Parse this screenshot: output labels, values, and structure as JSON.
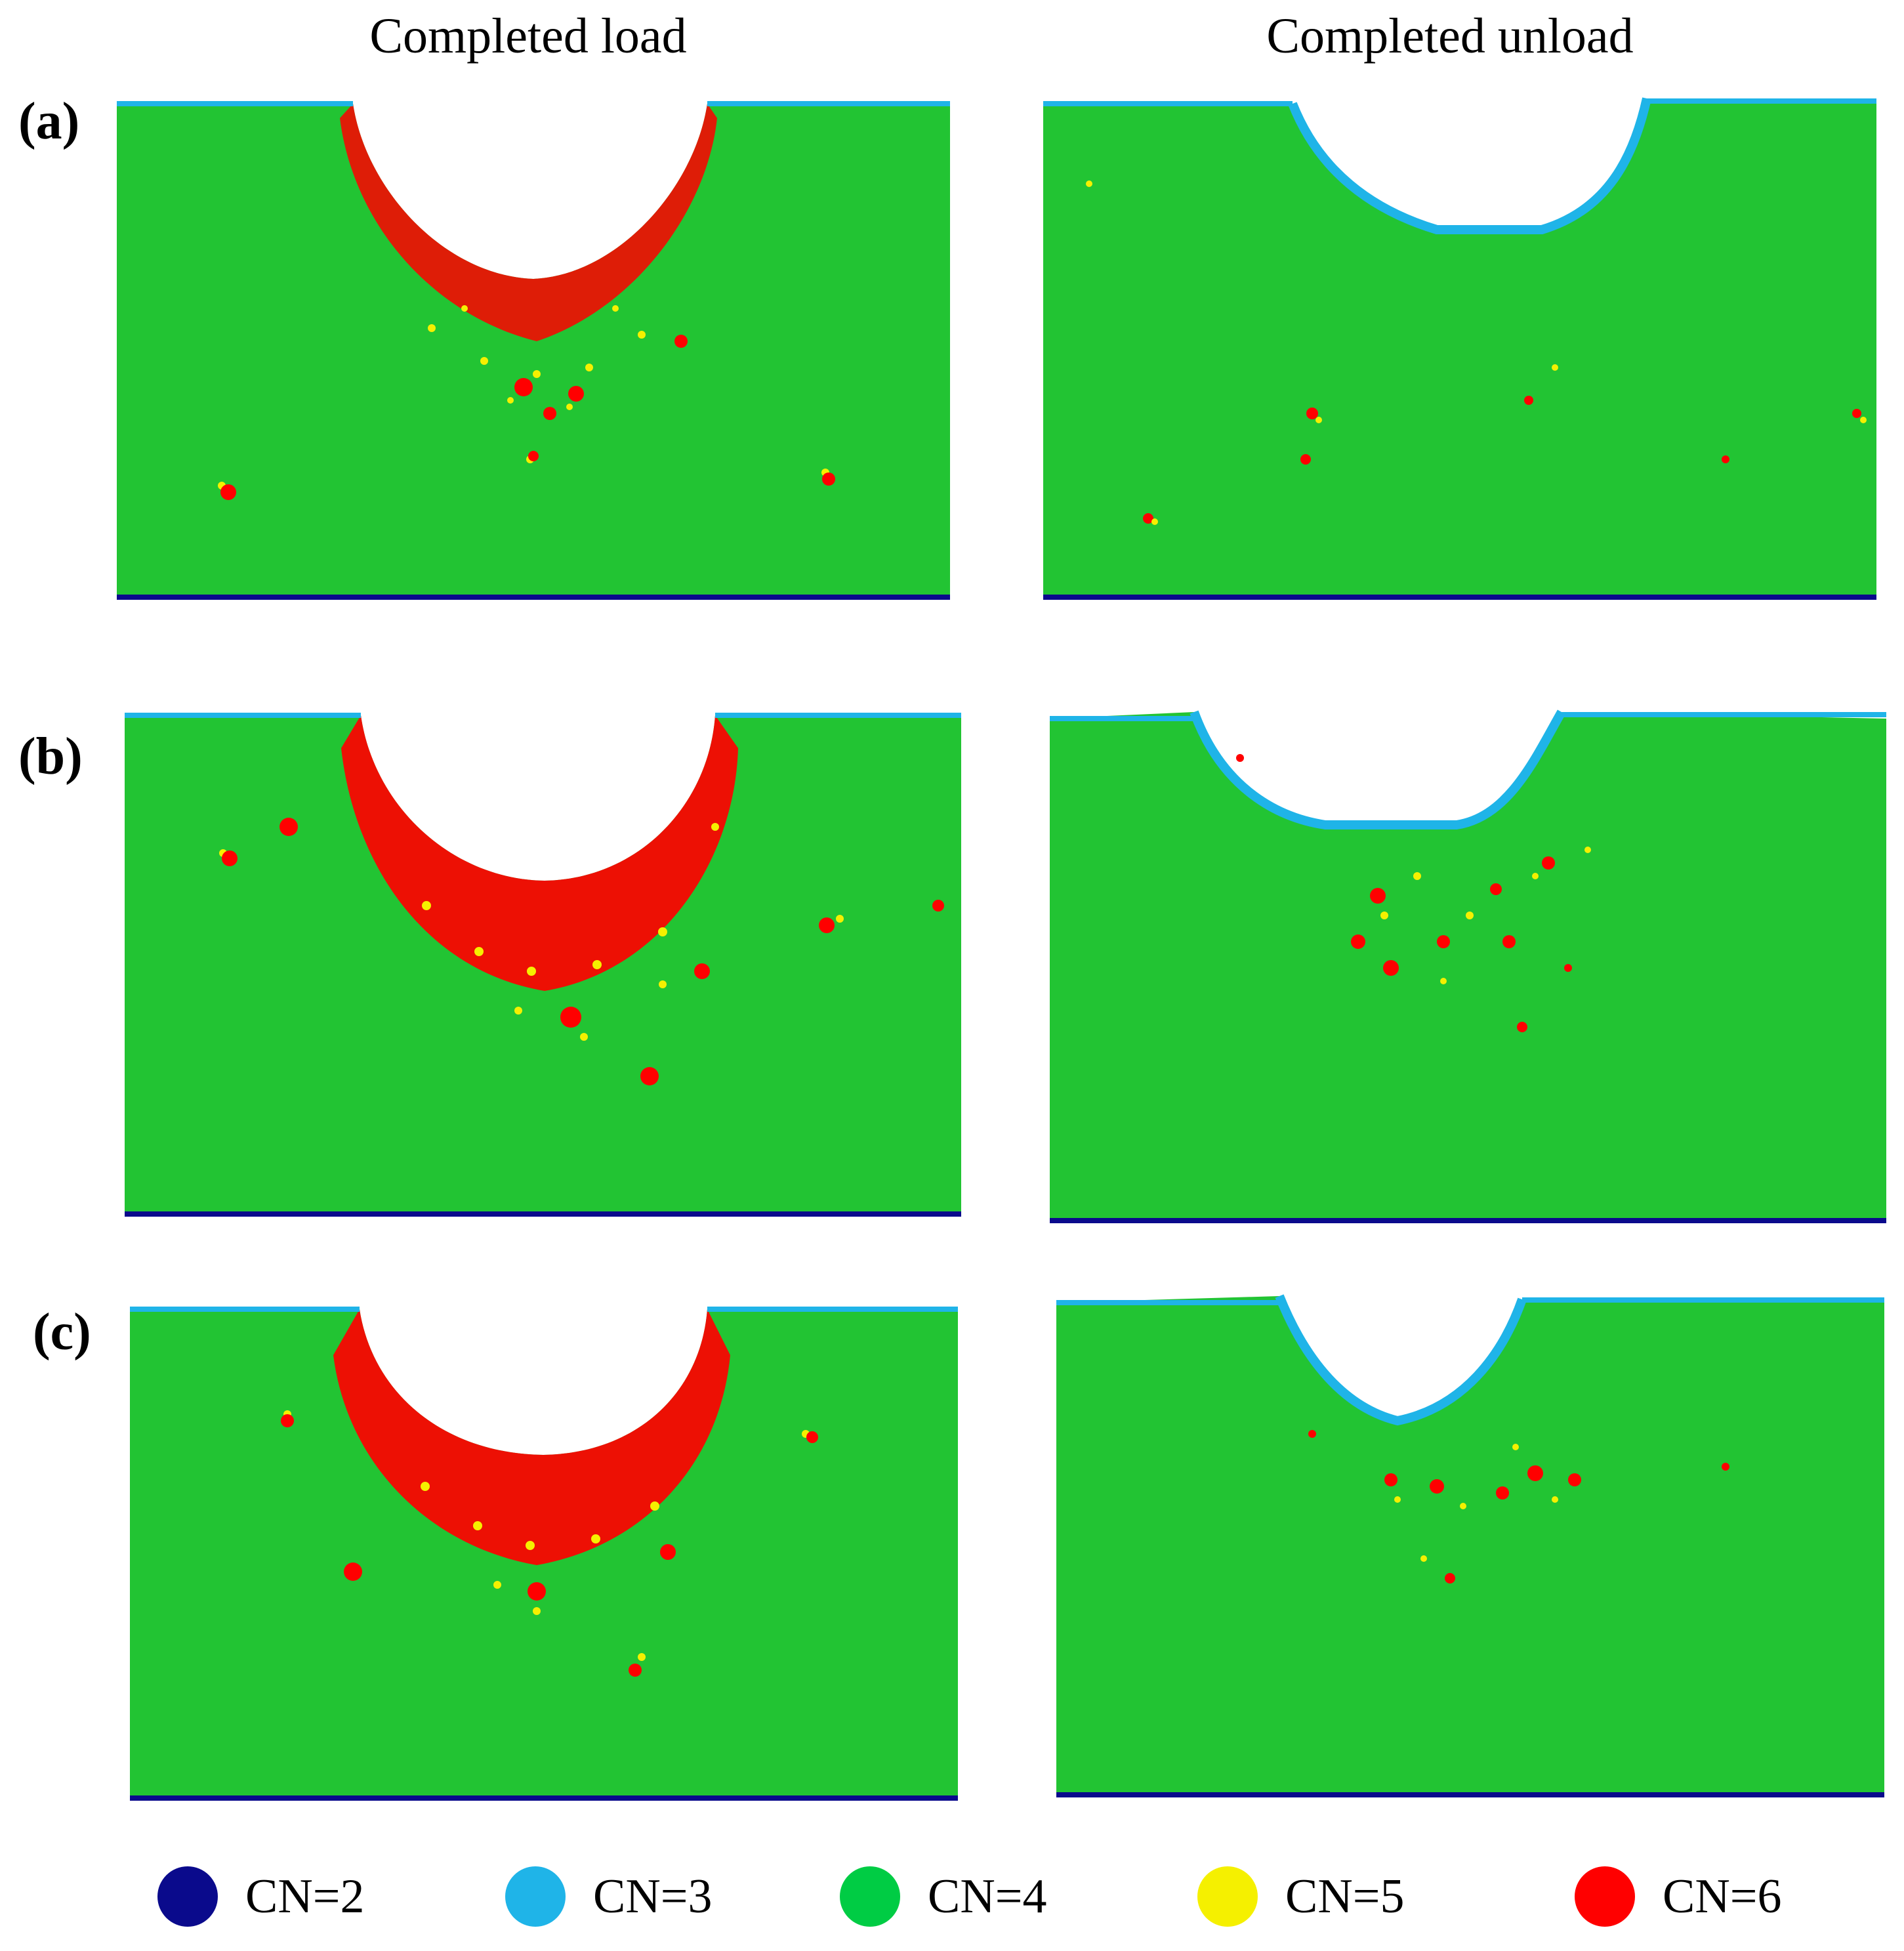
{
  "columns": {
    "load": "Completed load",
    "unload": "Completed unload"
  },
  "rows": [
    {
      "label": "(a)"
    },
    {
      "label": "(b)"
    },
    {
      "label": "(c)"
    }
  ],
  "colors": {
    "cn2": "#0a0a8c",
    "cn3": "#1fb4e8",
    "cn4": "#00cc44",
    "cn5": "#f5f000",
    "cn6": "#ff0000",
    "substrate": "#22c433"
  },
  "legend": [
    {
      "label": "CN=2",
      "color": "#0a0a8c",
      "icon": "cn2-dot-icon"
    },
    {
      "label": "CN=3",
      "color": "#1fb4e8",
      "icon": "cn3-dot-icon"
    },
    {
      "label": "CN=4",
      "color": "#00cc44",
      "icon": "cn4-dot-icon"
    },
    {
      "label": "CN=5",
      "color": "#f5f000",
      "icon": "cn5-dot-icon"
    },
    {
      "label": "CN=6",
      "color": "#ff0000",
      "icon": "cn6-dot-icon"
    }
  ]
}
